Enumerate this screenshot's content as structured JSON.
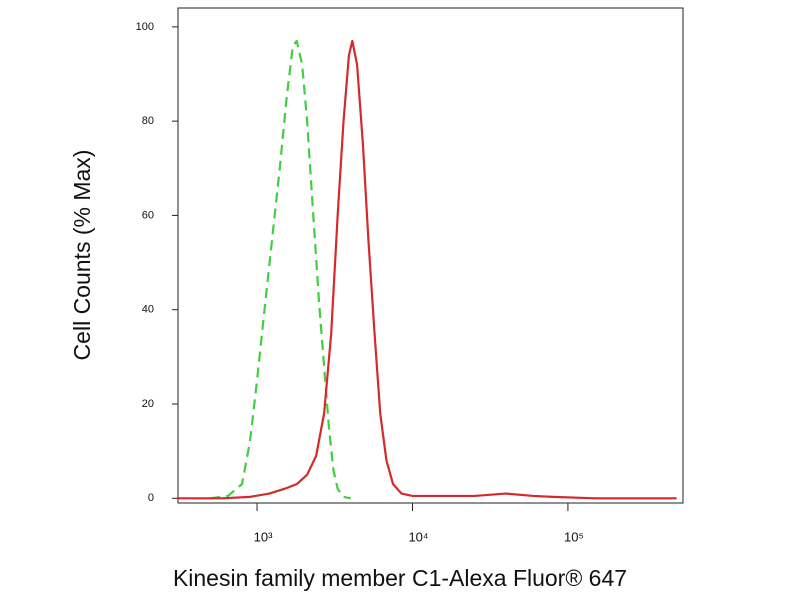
{
  "chart_data": {
    "type": "line",
    "x_label": "Kinesin family member C1-Alexa Fluor® 647",
    "y_label": "Cell Counts (% Max)",
    "x_scale": "log",
    "xlim": [
      310,
      550000
    ],
    "ylim": [
      -1,
      104
    ],
    "xticks": [
      {
        "value": 1000,
        "label": "10³"
      },
      {
        "value": 10000,
        "label": "10⁴"
      },
      {
        "value": 100000,
        "label": "10⁵"
      }
    ],
    "yticks": [
      0,
      20,
      40,
      60,
      80,
      100
    ],
    "series": [
      {
        "color": "#3fcf3f",
        "style": "dashed",
        "x": [
          500,
          650,
          800,
          900,
          1000,
          1100,
          1250,
          1400,
          1550,
          1700,
          1800,
          1950,
          2100,
          2300,
          2500,
          2700,
          2900,
          3100,
          3300,
          3600,
          4000
        ],
        "values": [
          0,
          0.5,
          3,
          12,
          25,
          38,
          55,
          70,
          85,
          96,
          97,
          92,
          80,
          60,
          42,
          28,
          15,
          6,
          2,
          0.3,
          0
        ]
      },
      {
        "color": "#d42a2a",
        "style": "solid",
        "x": [
          310,
          600,
          900,
          1200,
          1500,
          1800,
          2100,
          2400,
          2700,
          3000,
          3300,
          3600,
          3900,
          4100,
          4400,
          4800,
          5200,
          5700,
          6200,
          6800,
          7500,
          8500,
          10000,
          15000,
          25000,
          40000,
          60000,
          80000,
          150000,
          500000
        ],
        "values": [
          0,
          0,
          0.3,
          1,
          2,
          3,
          5,
          9,
          18,
          35,
          60,
          80,
          94,
          97,
          92,
          75,
          55,
          35,
          18,
          8,
          3,
          1,
          0.5,
          0.5,
          0.5,
          1,
          0.5,
          0.3,
          0,
          0
        ]
      }
    ]
  }
}
